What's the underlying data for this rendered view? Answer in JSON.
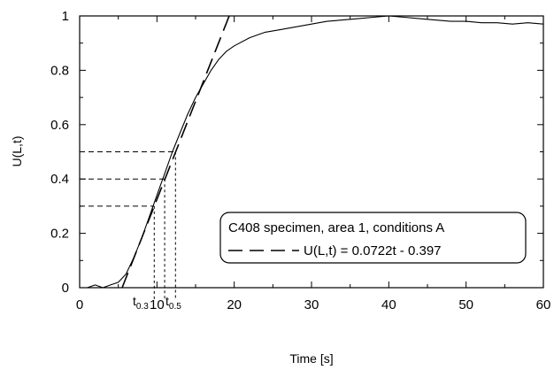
{
  "chart_data": {
    "type": "line",
    "xlabel": "Time [s]",
    "ylabel": "U(L,t)",
    "xlim": [
      0,
      60
    ],
    "ylim": [
      0,
      1
    ],
    "x_ticks": [
      "0",
      "10",
      "20",
      "30",
      "40",
      "50",
      "60"
    ],
    "y_ticks": [
      "0",
      "0.2",
      "0.4",
      "0.6",
      "0.8",
      "1"
    ],
    "grid": false,
    "legend_position": "center-right",
    "series": [
      {
        "name": "C408 specimen, area 1, conditions A",
        "style": "solid",
        "x": [
          0,
          1,
          2,
          3,
          4,
          5,
          6,
          7,
          8,
          9,
          10,
          11,
          12,
          13,
          14,
          15,
          16,
          17,
          18,
          19,
          20,
          22,
          24,
          26,
          28,
          30,
          32,
          34,
          36,
          38,
          40,
          42,
          44,
          46,
          48,
          50,
          52,
          54,
          56,
          58,
          60
        ],
        "y": [
          0.0,
          0.0,
          0.01,
          0.0,
          0.01,
          0.02,
          0.05,
          0.11,
          0.18,
          0.26,
          0.34,
          0.42,
          0.5,
          0.57,
          0.64,
          0.7,
          0.75,
          0.8,
          0.84,
          0.87,
          0.89,
          0.92,
          0.94,
          0.95,
          0.96,
          0.97,
          0.98,
          0.985,
          0.99,
          0.995,
          1.0,
          0.995,
          0.99,
          0.985,
          0.98,
          0.98,
          0.975,
          0.975,
          0.97,
          0.975,
          0.97
        ]
      },
      {
        "name": "U(L,t) = 0.0722t - 0.397",
        "style": "dashed",
        "slope": 0.0722,
        "intercept": -0.397
      }
    ],
    "reference_levels": [
      {
        "y": 0.3,
        "t": 9.65
      },
      {
        "y": 0.4,
        "t": 11.0
      },
      {
        "y": 0.5,
        "t": 12.4
      }
    ],
    "annotations": [
      {
        "base": "t",
        "sub": "0.3"
      },
      {
        "base": "t",
        "sub": "0.5"
      }
    ],
    "legend": {
      "entries": [
        "C408 specimen, area 1, conditions A",
        "U(L,t) = 0.0722t - 0.397"
      ]
    },
    "colors": {
      "line": "#000000",
      "background": "#ffffff"
    }
  }
}
